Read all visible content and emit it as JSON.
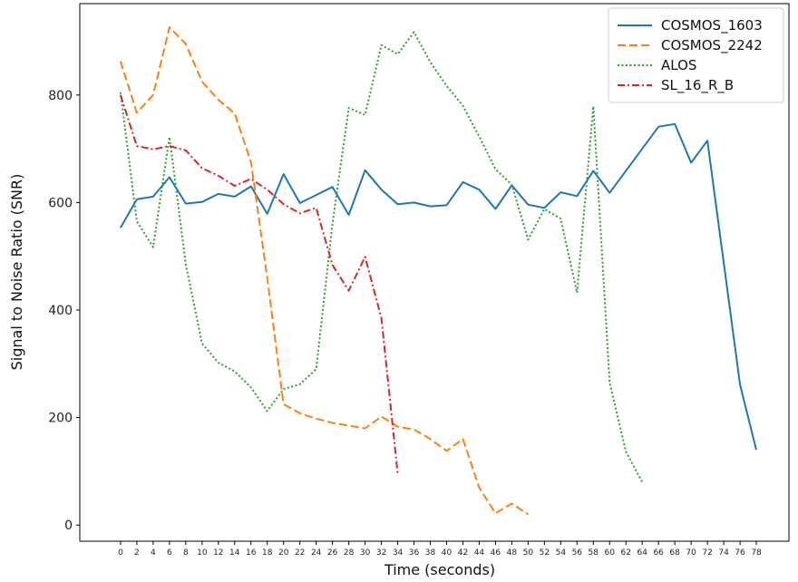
{
  "chart_data": {
    "type": "line",
    "xlabel": "Time (seconds)",
    "ylabel": "Signal to Noise Ratio (SNR)",
    "xlim": [
      -5,
      82
    ],
    "ylim": [
      -30,
      970
    ],
    "x_ticks": [
      0,
      2,
      4,
      6,
      8,
      10,
      12,
      14,
      16,
      18,
      20,
      22,
      24,
      26,
      28,
      30,
      32,
      34,
      36,
      38,
      40,
      42,
      44,
      46,
      48,
      50,
      52,
      54,
      56,
      58,
      60,
      62,
      64,
      66,
      68,
      70,
      72,
      74,
      76,
      78
    ],
    "y_ticks": [
      0,
      200,
      400,
      600,
      800
    ],
    "grid": false,
    "legend_position": "top-right",
    "series": [
      {
        "name": "COSMOS_1603",
        "color": "#1f77b4",
        "style": "solid",
        "x": [
          0,
          2,
          4,
          6,
          8,
          10,
          12,
          14,
          16,
          18,
          20,
          22,
          24,
          26,
          28,
          30,
          32,
          34,
          36,
          38,
          40,
          42,
          44,
          46,
          48,
          50,
          52,
          54,
          56,
          58,
          60,
          66,
          68,
          70,
          72,
          76,
          78
        ],
        "values": [
          553,
          606,
          611,
          647,
          598,
          601,
          616,
          611,
          630,
          579,
          653,
          599,
          614,
          629,
          577,
          660,
          624,
          597,
          600,
          593,
          595,
          638,
          624,
          588,
          632,
          596,
          590,
          619,
          612,
          659,
          618,
          741,
          746,
          674,
          715,
          261,
          140
        ]
      },
      {
        "name": "COSMOS_2242",
        "color": "#ff7f0e",
        "style": "dashed",
        "x": [
          0,
          2,
          4,
          6,
          8,
          10,
          12,
          14,
          16,
          18,
          20,
          22,
          24,
          26,
          28,
          30,
          32,
          34,
          36,
          38,
          40,
          42,
          44,
          46,
          48,
          50
        ],
        "values": [
          863,
          767,
          800,
          926,
          895,
          825,
          791,
          766,
          675,
          460,
          225,
          208,
          198,
          190,
          185,
          180,
          202,
          183,
          178,
          160,
          138,
          160,
          70,
          22,
          40,
          20
        ]
      },
      {
        "name": "ALOS",
        "color": "#2ca02c",
        "style": "dotted",
        "x": [
          0,
          2,
          4,
          6,
          8,
          10,
          12,
          14,
          16,
          18,
          20,
          22,
          24,
          26,
          28,
          30,
          32,
          34,
          36,
          38,
          40,
          42,
          44,
          46,
          48,
          50,
          52,
          54,
          56,
          58,
          60,
          62,
          64
        ],
        "values": [
          805,
          565,
          517,
          722,
          485,
          338,
          302,
          286,
          256,
          212,
          253,
          262,
          290,
          560,
          776,
          763,
          893,
          876,
          917,
          861,
          817,
          780,
          723,
          662,
          633,
          531,
          588,
          570,
          432,
          779,
          265,
          137,
          80
        ]
      },
      {
        "name": "SL_16_R_B",
        "color": "#d62728",
        "style": "dashdot",
        "x": [
          0,
          2,
          4,
          6,
          8,
          10,
          12,
          14,
          16,
          18,
          20,
          22,
          24,
          26,
          28,
          30,
          32,
          34
        ],
        "values": [
          800,
          705,
          699,
          705,
          697,
          664,
          650,
          631,
          644,
          624,
          597,
          580,
          590,
          484,
          436,
          499,
          385,
          95
        ]
      }
    ]
  }
}
